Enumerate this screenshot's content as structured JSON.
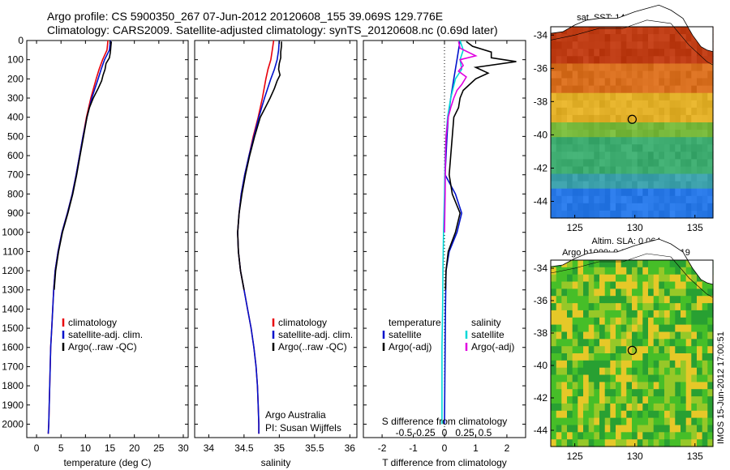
{
  "title_line1": "Argo profile: CS 5900350_267 07-Jun-2012 20120608_155 39.069S 129.776E",
  "title_line2": "Climatology: CARS2009. Satellite-adjusted climatology: synTS_20120608.nc (0.69d later)",
  "timestamp_label": "IMOS 15-Jun-2012 17:00:51",
  "colors": {
    "climatology": "#e8000b",
    "satellite": "#0011cc",
    "argo": "#000000",
    "sat_salinity": "#00d8d8",
    "argo_adj_salinity": "#e000e0"
  },
  "chart_data": [
    {
      "type": "line",
      "xlabel": "temperature (deg C)",
      "xlim": [
        -2,
        31
      ],
      "x_ticks": [
        0,
        5,
        10,
        15,
        20,
        25,
        30
      ],
      "ylim": [
        0,
        2070
      ],
      "y_ticks": [
        0,
        100,
        200,
        300,
        400,
        500,
        600,
        700,
        800,
        900,
        1000,
        1100,
        1200,
        1300,
        1400,
        1500,
        1600,
        1700,
        1800,
        1900,
        2000
      ],
      "legend": [
        "climatology",
        "satellite-adj. clim.",
        "Argo(..raw -QC)"
      ],
      "series": [
        {
          "name": "climatology",
          "depth": [
            0,
            50,
            100,
            150,
            200,
            300,
            400,
            500,
            600,
            700,
            800,
            900,
            1000,
            1100,
            1200,
            1300,
            1400,
            1500,
            1600,
            1700,
            1800,
            1900,
            2000,
            2050
          ],
          "values": [
            14.6,
            14.4,
            13.5,
            12.8,
            12.2,
            11.1,
            10.2,
            9.5,
            8.8,
            8.1,
            7.3,
            6.3,
            5.2,
            4.4,
            3.8,
            3.5,
            3.3,
            3.1,
            2.9,
            2.8,
            2.7,
            2.6,
            2.5,
            2.4
          ]
        },
        {
          "name": "satellite-adj. clim.",
          "depth": [
            0,
            50,
            100,
            150,
            200,
            300,
            400,
            500,
            600,
            700,
            800,
            900,
            1000,
            1100,
            1200,
            1300,
            1400,
            1500,
            1600,
            1700,
            1800,
            1900,
            2000,
            2050
          ],
          "values": [
            15.1,
            14.9,
            13.9,
            13.2,
            12.6,
            11.3,
            10.3,
            9.5,
            8.8,
            8.1,
            7.3,
            6.3,
            5.2,
            4.4,
            3.8,
            3.5,
            3.3,
            3.1,
            2.9,
            2.8,
            2.7,
            2.6,
            2.5,
            2.4
          ]
        },
        {
          "name": "Argo(..raw -QC)",
          "depth": [
            5,
            30,
            60,
            90,
            120,
            150,
            180,
            210,
            250,
            300,
            350,
            400,
            500,
            600,
            700,
            800,
            900,
            1000,
            1100,
            1200,
            1300
          ],
          "values": [
            15.3,
            15.2,
            15.1,
            14.9,
            14.2,
            14.0,
            13.6,
            13.3,
            12.6,
            11.6,
            10.8,
            10.3,
            9.6,
            8.9,
            8.2,
            7.4,
            6.4,
            5.3,
            4.5,
            3.9,
            3.6
          ]
        }
      ]
    },
    {
      "type": "line",
      "xlabel": "salinity",
      "xlim": [
        33.8,
        36.1
      ],
      "x_ticks": [
        34,
        34.5,
        35,
        35.5,
        36
      ],
      "ylim": [
        0,
        2070
      ],
      "legend": [
        "climatology",
        "satellite-adj. clim.",
        "Argo(..raw -QC)"
      ],
      "annotation": [
        "Argo Australia",
        "PI: Susan Wijffels"
      ],
      "series": [
        {
          "name": "climatology",
          "depth": [
            0,
            50,
            100,
            150,
            200,
            300,
            400,
            500,
            600,
            700,
            800,
            900,
            1000,
            1100,
            1200,
            1300,
            1400,
            1500,
            1600,
            1700,
            1800,
            1900,
            2000,
            2050
          ],
          "values": [
            34.92,
            34.9,
            34.88,
            34.84,
            34.81,
            34.76,
            34.7,
            34.63,
            34.57,
            34.51,
            34.46,
            34.43,
            34.41,
            34.42,
            34.45,
            34.5,
            34.55,
            34.6,
            34.64,
            34.67,
            34.69,
            34.7,
            34.71,
            34.71
          ]
        },
        {
          "name": "satellite-adj. clim.",
          "depth": [
            0,
            50,
            100,
            150,
            200,
            300,
            400,
            500,
            600,
            700,
            800,
            900,
            1000,
            1100,
            1200,
            1300,
            1400,
            1500,
            1600,
            1700,
            1800,
            1900,
            2000,
            2050
          ],
          "values": [
            35.0,
            34.99,
            34.97,
            34.93,
            34.88,
            34.79,
            34.71,
            34.64,
            34.57,
            34.51,
            34.46,
            34.43,
            34.41,
            34.42,
            34.45,
            34.5,
            34.55,
            34.6,
            34.64,
            34.67,
            34.69,
            34.7,
            34.71,
            34.71
          ]
        },
        {
          "name": "Argo(..raw -QC)",
          "depth": [
            5,
            30,
            60,
            90,
            120,
            150,
            180,
            210,
            250,
            300,
            350,
            400,
            500,
            600,
            700,
            800,
            900,
            1000,
            1100,
            1200,
            1300
          ],
          "values": [
            35.03,
            35.03,
            35.02,
            35.02,
            35.0,
            34.99,
            35.01,
            34.97,
            34.93,
            34.87,
            34.8,
            34.73,
            34.65,
            34.58,
            34.52,
            34.47,
            34.43,
            34.41,
            34.42,
            34.45,
            34.5
          ]
        }
      ]
    },
    {
      "type": "line",
      "xlabel": "T difference from climatology",
      "x_ticks": [
        -2,
        -1,
        0,
        1,
        2
      ],
      "xlim": [
        -2.6,
        2.6
      ],
      "xlabel_top": "S difference from climatology",
      "x2_ticks": [
        "-0.5",
        "-0.25",
        "0",
        "0.25",
        "0.5"
      ],
      "ylim": [
        0,
        2070
      ],
      "legend": [
        "temperature",
        "satellite",
        "Argo(-adj)",
        "salinity",
        "satellite",
        "Argo(-adj)"
      ],
      "series": [
        {
          "name": "satellite",
          "quantity": "temperature",
          "depth": [
            0,
            100,
            200,
            300,
            400,
            500,
            600,
            700,
            800,
            900,
            1000,
            1100,
            1200,
            1400,
            1600,
            1800,
            2000
          ],
          "values": [
            0.5,
            0.4,
            0.3,
            0.2,
            0.12,
            0.08,
            0.05,
            0.02,
            0.35,
            0.55,
            0.4,
            0.15,
            0.05,
            0.03,
            0.02,
            0.01,
            0.0
          ]
        },
        {
          "name": "Argo(-adj)",
          "quantity": "temperature",
          "depth": [
            5,
            30,
            60,
            90,
            110,
            140,
            170,
            200,
            230,
            260,
            300,
            350,
            400,
            500,
            600,
            700,
            800,
            900,
            1000,
            1100,
            1200,
            1300
          ],
          "values": [
            0.7,
            0.9,
            1.5,
            1.5,
            2.3,
            1.0,
            1.4,
            1.0,
            0.8,
            0.6,
            0.5,
            0.45,
            0.3,
            0.25,
            0.2,
            0.15,
            0.25,
            0.5,
            0.35,
            0.12,
            0.05,
            0.03
          ]
        },
        {
          "name": "satellite",
          "quantity": "salinity",
          "depth": [
            0,
            50,
            100,
            150,
            200,
            300,
            400,
            500,
            600,
            800,
            1000,
            1200,
            1400,
            1600,
            1800,
            2000
          ],
          "values": [
            0.5,
            0.6,
            0.5,
            0.55,
            0.35,
            0.2,
            0.1,
            0.05,
            0.02,
            0.0,
            -0.03,
            -0.05,
            -0.06,
            -0.08,
            -0.08,
            -0.08
          ]
        },
        {
          "name": "Argo(-adj)",
          "quantity": "salinity",
          "depth": [
            5,
            40,
            80,
            100,
            130,
            160,
            190,
            230,
            260,
            300,
            350,
            400,
            500,
            600,
            800,
            1000
          ],
          "values": [
            0.45,
            0.5,
            1.0,
            0.5,
            0.6,
            0.45,
            0.7,
            0.55,
            0.4,
            0.3,
            0.2,
            0.12,
            0.05,
            0.03,
            0.02,
            0.0
          ]
        }
      ]
    },
    {
      "type": "heatmap",
      "title": "sat. SST: 14.3 Argo: 14.9",
      "xlim": [
        123,
        136.5
      ],
      "x_ticks": [
        125,
        130,
        135
      ],
      "ylim": [
        -45,
        -33.5
      ],
      "y_ticks": [
        -44,
        -42,
        -40,
        -38,
        -36,
        -34
      ],
      "marker": [
        129.776,
        -39.069
      ]
    },
    {
      "type": "heatmap",
      "title": "Altim. SLA: 0.064",
      "subtitle": "Argo h1000: 0.022 h2000: 0.019",
      "xlim": [
        123,
        136.5
      ],
      "x_ticks": [
        125,
        130,
        135
      ],
      "ylim": [
        -45,
        -33.5
      ],
      "y_ticks": [
        -44,
        -42,
        -40,
        -38,
        -36,
        -34
      ],
      "marker": [
        129.776,
        -39.069
      ]
    }
  ]
}
